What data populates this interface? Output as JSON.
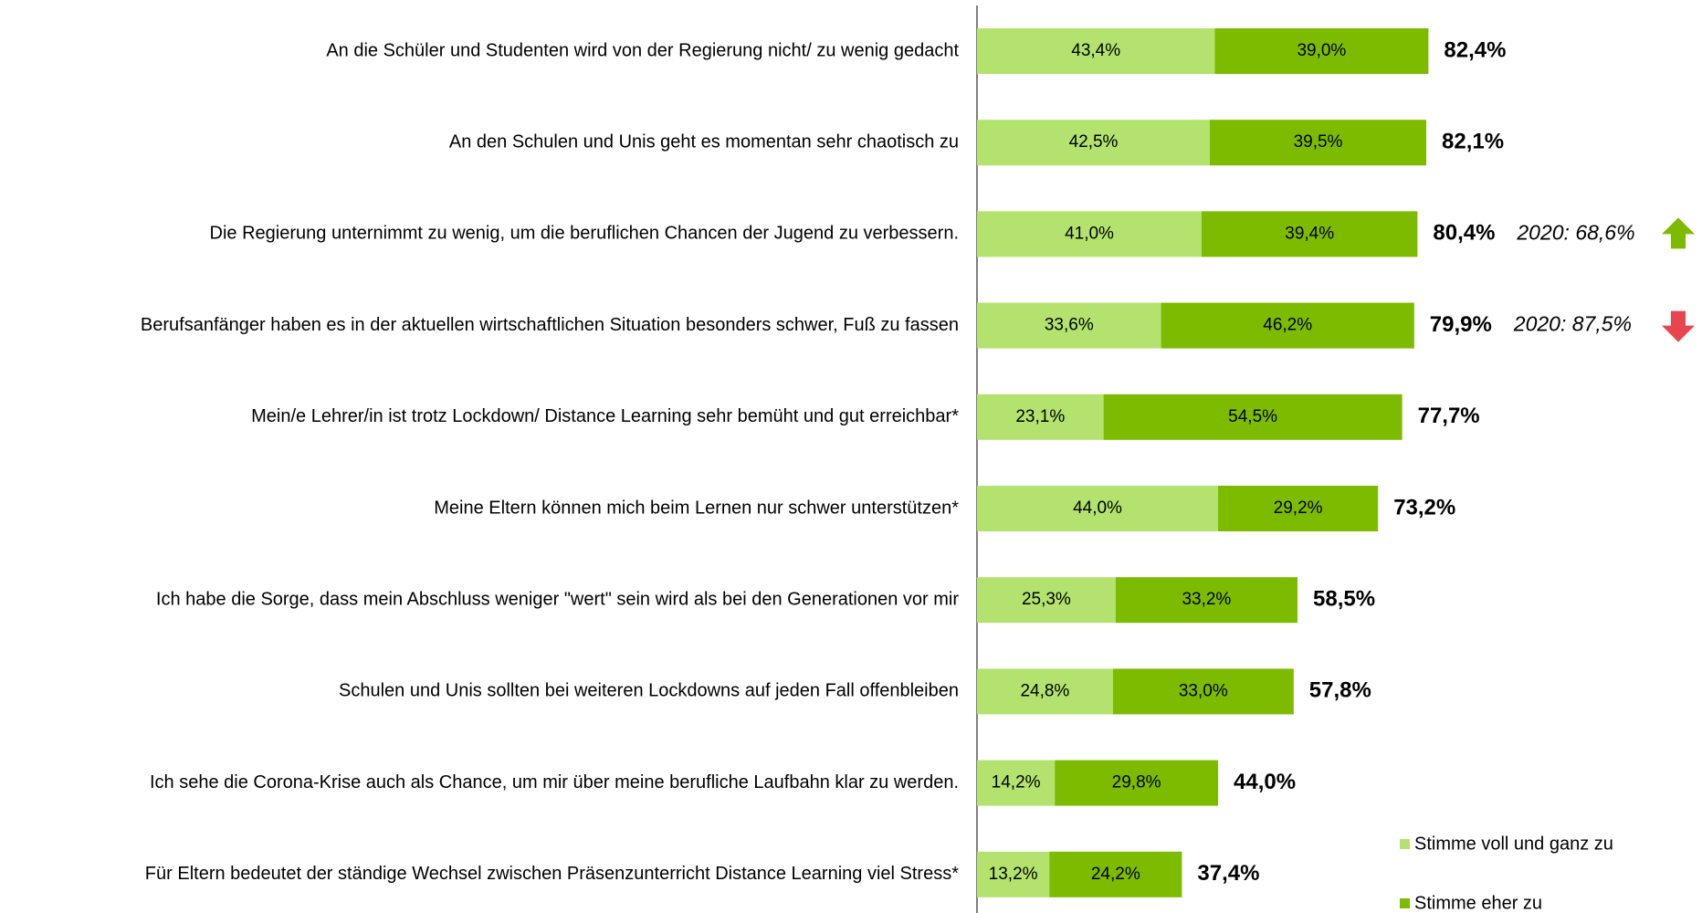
{
  "chart_data": {
    "type": "stacked-bar-horizontal",
    "categories": [
      "An die Schüler und Studenten wird von der Regierung nicht/ zu wenig gedacht",
      "An den Schulen und Unis geht es momentan sehr chaotisch zu",
      "Die Regierung unternimmt zu wenig, um die beruflichen Chancen der Jugend zu verbessern.",
      "Berufsanfänger haben es in der aktuellen wirtschaftlichen Situation besonders schwer, Fuß zu fassen",
      "Mein/e Lehrer/in ist trotz Lockdown/ Distance Learning sehr bemüht und gut erreichbar*",
      "Meine Eltern können mich beim Lernen nur schwer unterstützen*",
      "Ich habe die Sorge, dass mein Abschluss weniger \"wert\" sein wird als bei den Generationen vor mir",
      "Schulen und Unis sollten bei weiteren Lockdowns auf jeden Fall offenbleiben",
      "Ich sehe die Corona-Krise auch als Chance, um mir über meine berufliche Laufbahn klar zu werden.",
      "Für Eltern bedeutet der ständige Wechsel zwischen Präsenzunterricht Distance Learning viel Stress*"
    ],
    "series": [
      {
        "name": "Stimme voll und ganz zu",
        "color": "#b3e36e",
        "values": [
          43.4,
          42.5,
          41.0,
          33.6,
          23.1,
          44.0,
          25.3,
          24.8,
          14.2,
          13.2
        ],
        "value_labels": [
          "43,4%",
          "42,5%",
          "41,0%",
          "33,6%",
          "23,1%",
          "44,0%",
          "25,3%",
          "24,8%",
          "14,2%",
          "13,2%"
        ]
      },
      {
        "name": "Stimme eher zu",
        "color": "#7dbb00",
        "values": [
          39.0,
          39.5,
          39.4,
          46.2,
          54.5,
          29.2,
          33.2,
          33.0,
          29.8,
          24.2
        ],
        "value_labels": [
          "39,0%",
          "39,5%",
          "39,4%",
          "46,2%",
          "54,5%",
          "29,2%",
          "33,2%",
          "33,0%",
          "29,8%",
          "24,2%"
        ]
      }
    ],
    "totals": [
      82.4,
      82.1,
      80.4,
      79.9,
      77.7,
      73.2,
      58.5,
      57.8,
      44.0,
      37.4
    ],
    "total_labels": [
      "82,4%",
      "82,1%",
      "80,4%",
      "79,9%",
      "77,7%",
      "73,2%",
      "58,5%",
      "57,8%",
      "44,0%",
      "37,4%"
    ],
    "comparisons": [
      null,
      null,
      "2020: 68,6%",
      "2020: 87,5%",
      null,
      null,
      null,
      null,
      null,
      null
    ],
    "comparison_trend": [
      null,
      null,
      "up",
      "down",
      null,
      null,
      null,
      null,
      null,
      null
    ],
    "xlim": [
      0,
      100
    ],
    "legend": "bottom-right"
  }
}
